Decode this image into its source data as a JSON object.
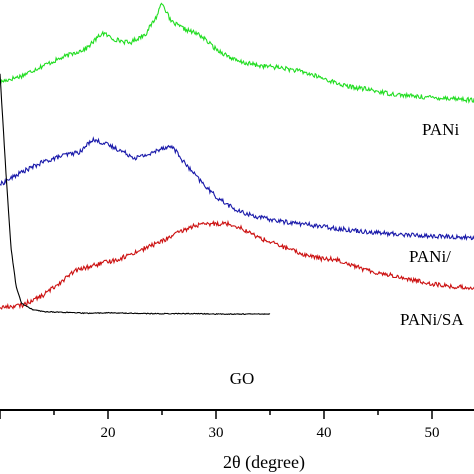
{
  "chart_data": {
    "type": "line",
    "xlabel": "2θ (degree)",
    "ylabel": "",
    "xlim": [
      10,
      55.5
    ],
    "ylim": [
      0,
      1
    ],
    "x_ticks": [
      20,
      30,
      40,
      50
    ],
    "y_ticks_visible": false,
    "grid": false,
    "legend": "none",
    "series": [
      {
        "name": "PANi",
        "color": "#22dd22",
        "points": [
          [
            10,
            0.8
          ],
          [
            12,
            0.815
          ],
          [
            14,
            0.84
          ],
          [
            16,
            0.862
          ],
          [
            18,
            0.882
          ],
          [
            19.5,
            0.92
          ],
          [
            20.5,
            0.905
          ],
          [
            22,
            0.895
          ],
          [
            23.5,
            0.918
          ],
          [
            24.5,
            0.96
          ],
          [
            25,
            0.996
          ],
          [
            25.8,
            0.948
          ],
          [
            27,
            0.93
          ],
          [
            28.5,
            0.915
          ],
          [
            30,
            0.88
          ],
          [
            32,
            0.85
          ],
          [
            34,
            0.84
          ],
          [
            36,
            0.835
          ],
          [
            38,
            0.825
          ],
          [
            40,
            0.808
          ],
          [
            42,
            0.79
          ],
          [
            44,
            0.782
          ],
          [
            46,
            0.772
          ],
          [
            48,
            0.766
          ],
          [
            50,
            0.762
          ],
          [
            52,
            0.76
          ],
          [
            54,
            0.755
          ],
          [
            55.5,
            0.752
          ]
        ]
      },
      {
        "name": "PANi/",
        "color": "#1a1aaa",
        "points": [
          [
            10,
            0.55
          ],
          [
            12,
            0.58
          ],
          [
            14,
            0.605
          ],
          [
            16,
            0.622
          ],
          [
            17.5,
            0.63
          ],
          [
            18.5,
            0.66
          ],
          [
            19.5,
            0.652
          ],
          [
            21,
            0.635
          ],
          [
            22.5,
            0.615
          ],
          [
            24,
            0.625
          ],
          [
            25,
            0.64
          ],
          [
            26,
            0.642
          ],
          [
            27,
            0.605
          ],
          [
            28.5,
            0.56
          ],
          [
            30,
            0.52
          ],
          [
            32,
            0.485
          ],
          [
            34,
            0.47
          ],
          [
            36,
            0.46
          ],
          [
            38,
            0.454
          ],
          [
            40,
            0.447
          ],
          [
            42,
            0.44
          ],
          [
            44,
            0.435
          ],
          [
            46,
            0.43
          ],
          [
            48,
            0.427
          ],
          [
            50,
            0.424
          ],
          [
            52,
            0.422
          ],
          [
            54,
            0.42
          ],
          [
            55.5,
            0.418
          ]
        ]
      },
      {
        "name": "PANi/SA",
        "color": "#cc1111",
        "points": [
          [
            10,
            0.25
          ],
          [
            12,
            0.255
          ],
          [
            14,
            0.28
          ],
          [
            15.5,
            0.31
          ],
          [
            17,
            0.34
          ],
          [
            19,
            0.355
          ],
          [
            21,
            0.368
          ],
          [
            23,
            0.39
          ],
          [
            25,
            0.412
          ],
          [
            26.5,
            0.432
          ],
          [
            28,
            0.45
          ],
          [
            30,
            0.455
          ],
          [
            31,
            0.455
          ],
          [
            32,
            0.448
          ],
          [
            34,
            0.42
          ],
          [
            36,
            0.4
          ],
          [
            38,
            0.38
          ],
          [
            40,
            0.368
          ],
          [
            41,
            0.368
          ],
          [
            42,
            0.36
          ],
          [
            44,
            0.34
          ],
          [
            46,
            0.33
          ],
          [
            48,
            0.318
          ],
          [
            50,
            0.308
          ],
          [
            52,
            0.3
          ],
          [
            54,
            0.298
          ],
          [
            55.5,
            0.295
          ]
        ]
      },
      {
        "name": "GO",
        "color": "#000000",
        "points": [
          [
            10,
            0.82
          ],
          [
            10.5,
            0.6
          ],
          [
            11,
            0.4
          ],
          [
            11.5,
            0.3
          ],
          [
            12,
            0.26
          ],
          [
            13,
            0.245
          ],
          [
            14,
            0.24
          ],
          [
            16,
            0.238
          ],
          [
            18,
            0.236
          ],
          [
            20,
            0.237
          ],
          [
            22,
            0.236
          ],
          [
            24,
            0.235
          ],
          [
            26,
            0.235
          ],
          [
            28,
            0.235
          ],
          [
            30,
            0.234
          ],
          [
            32,
            0.234
          ],
          [
            35,
            0.234
          ]
        ]
      }
    ]
  }
}
